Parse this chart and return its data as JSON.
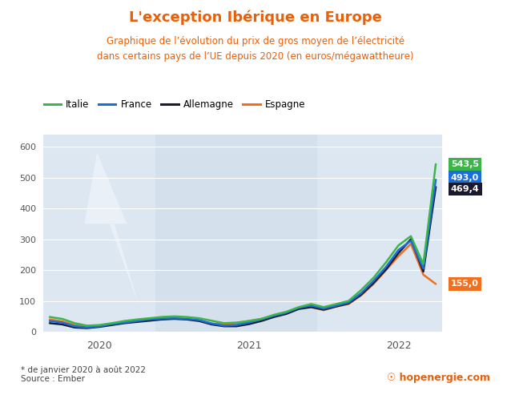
{
  "title": "L'exception Ibérique en Europe",
  "subtitle_line1": "Graphique de l’évolution du prix de gros moyen de l’électricité",
  "subtitle_line2": "dans certains pays de l’UE depuis 2020 (en euros/mégawattheure)",
  "title_color": "#e8600a",
  "title_fontsize": 13,
  "subtitle_color": "#e8600a",
  "subtitle_fontsize": 8.5,
  "background_color": "#ffffff",
  "plot_bg_color": "#d5e0ed",
  "plot_bg_light": "#dde7f2",
  "ylim": [
    0,
    640
  ],
  "yticks": [
    0,
    100,
    200,
    300,
    400,
    500,
    600
  ],
  "footer_left": "* de janvier 2020 à août 2022\nSource : Ember",
  "series": {
    "Italie": {
      "color": "#3cb54a",
      "final_value": "543,5",
      "label_bg": "#3cb54a"
    },
    "France": {
      "color": "#1a6edb",
      "final_value": "493,0",
      "label_bg": "#1a6edb"
    },
    "Allemagne": {
      "color": "#1a1a2e",
      "final_value": "469,4",
      "label_bg": "#1a1a2e"
    },
    "Espagne": {
      "color": "#f07020",
      "final_value": "155,0",
      "label_bg": "#f07020"
    }
  },
  "n_points": 32,
  "data": {
    "Italie": [
      48,
      42,
      28,
      20,
      22,
      28,
      35,
      40,
      44,
      48,
      50,
      48,
      44,
      36,
      28,
      30,
      35,
      42,
      55,
      65,
      80,
      90,
      80,
      90,
      100,
      135,
      175,
      225,
      280,
      310,
      220,
      543.5
    ],
    "France": [
      35,
      30,
      18,
      14,
      18,
      25,
      30,
      35,
      40,
      43,
      44,
      42,
      38,
      27,
      20,
      22,
      30,
      40,
      52,
      62,
      78,
      85,
      75,
      85,
      95,
      125,
      165,
      210,
      265,
      295,
      205,
      493.0
    ],
    "Allemagne": [
      28,
      24,
      14,
      12,
      16,
      22,
      28,
      32,
      36,
      40,
      42,
      40,
      35,
      24,
      18,
      18,
      25,
      35,
      48,
      58,
      74,
      80,
      72,
      82,
      92,
      120,
      158,
      202,
      255,
      300,
      195,
      469.4
    ],
    "Espagne": [
      40,
      34,
      22,
      18,
      20,
      26,
      32,
      36,
      40,
      43,
      44,
      42,
      36,
      26,
      25,
      28,
      35,
      42,
      52,
      60,
      76,
      80,
      70,
      82,
      90,
      118,
      155,
      200,
      245,
      285,
      185,
      155.0
    ]
  },
  "shade_bands": [
    {
      "start": 0,
      "end": 8,
      "color": "#d9e5f0",
      "alpha": 0.7
    },
    {
      "start": 8,
      "end": 21,
      "color": "#cdd8e6",
      "alpha": 0.0
    },
    {
      "start": 21,
      "end": 32,
      "color": "#d9e5f0",
      "alpha": 0.7
    }
  ]
}
